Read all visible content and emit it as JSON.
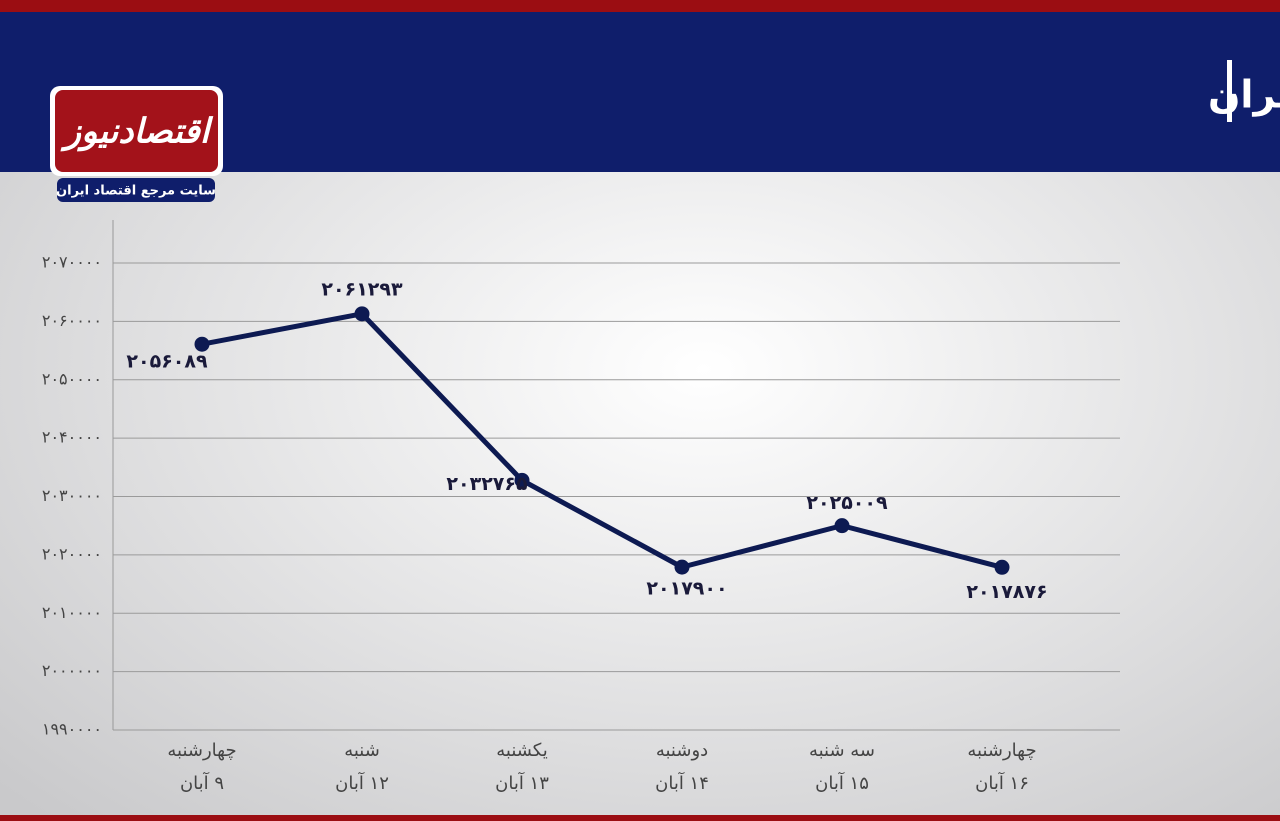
{
  "chart_data": {
    "type": "line",
    "title": "روند تغییرات شاخص کل بورس تهران",
    "categories": [
      [
        "چهارشنبه",
        "۹ آبان"
      ],
      [
        "شنبه",
        "۱۲ آبان"
      ],
      [
        "یکشنبه",
        "۱۳ آبان"
      ],
      [
        "دوشنبه",
        "۱۴ آبان"
      ],
      [
        "سه شنبه",
        "۱۵ آبان"
      ],
      [
        "چهارشنبه",
        "۱۶ آبان"
      ]
    ],
    "values": [
      2056089,
      2061293,
      2032765,
      2017900,
      2025009,
      2017876
    ],
    "value_labels": [
      "۲۰۵۶۰۸۹",
      "۲۰۶۱۲۹۳",
      "۲۰۳۲۷۶۵",
      "۲۰۱۷۹۰۰",
      "۲۰۲۵۰۰۹",
      "۲۰۱۷۸۷۶"
    ],
    "color": "#0d1a52",
    "ylim": [
      1990000,
      2070000
    ],
    "yticks": [
      {
        "value": 1990000,
        "label": "۱۹۹۰۰۰۰"
      },
      {
        "value": 2000000,
        "label": "۲۰۰۰۰۰۰"
      },
      {
        "value": 2010000,
        "label": "۲۰۱۰۰۰۰"
      },
      {
        "value": 2020000,
        "label": "۲۰۲۰۰۰۰"
      },
      {
        "value": 2030000,
        "label": "۲۰۳۰۰۰۰"
      },
      {
        "value": 2040000,
        "label": "۲۰۴۰۰۰۰"
      },
      {
        "value": 2050000,
        "label": "۲۰۵۰۰۰۰"
      },
      {
        "value": 2060000,
        "label": "۲۰۶۰۰۰۰"
      },
      {
        "value": 2070000,
        "label": "۲۰۷۰۰۰۰"
      }
    ],
    "grid": true
  },
  "logo": {
    "name": "اقتصادنیوز",
    "tagline": "سایت مرجع اقتصاد ایران"
  }
}
